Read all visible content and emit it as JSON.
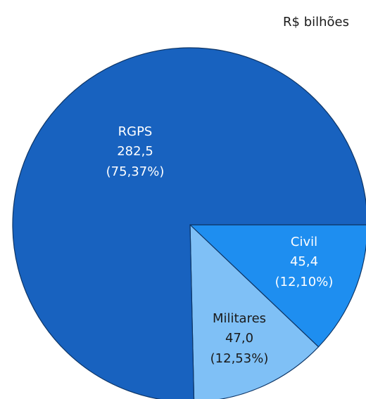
{
  "chart_data": {
    "type": "pie",
    "subtitle": "R$ bilhões",
    "categories": [
      "Civil",
      "Militares",
      "RGPS"
    ],
    "values": [
      45.4,
      47.0,
      282.5
    ],
    "value_labels": [
      "45,4",
      "47,0",
      "282,5"
    ],
    "percents": [
      12.1,
      12.53,
      75.37
    ],
    "percent_labels": [
      "(12,10%)",
      "(12,53%)",
      "(75,37%)"
    ],
    "colors": [
      "#1e8ef0",
      "#7fc0f6",
      "#1862bf"
    ],
    "label_colors": [
      "#ffffff",
      "#1a1a1a",
      "#ffffff"
    ]
  }
}
